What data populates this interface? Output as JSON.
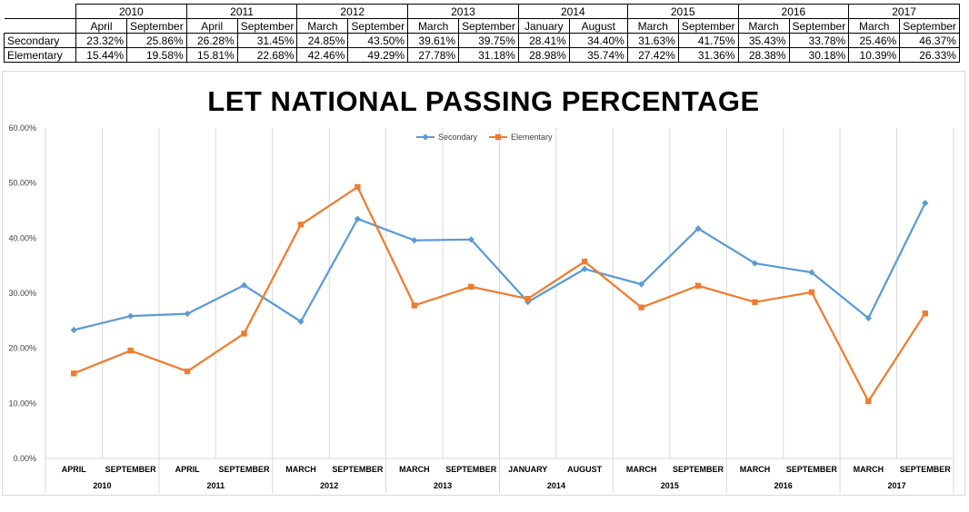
{
  "table": {
    "years": [
      "2010",
      "2011",
      "2012",
      "2013",
      "2014",
      "2015",
      "2016",
      "2017"
    ],
    "periods": [
      "April",
      "September",
      "April",
      "September",
      "March",
      "September",
      "March",
      "September",
      "January",
      "August",
      "March",
      "September",
      "March",
      "September",
      "March",
      "September"
    ],
    "rows": [
      {
        "label": "Secondary",
        "values": [
          "23.32%",
          "25.86%",
          "26.28%",
          "31.45%",
          "24.85%",
          "43.50%",
          "39.61%",
          "39.75%",
          "28.41%",
          "34.40%",
          "31.63%",
          "41.75%",
          "35.43%",
          "33.78%",
          "25.46%",
          "46.37%"
        ]
      },
      {
        "label": "Elementary",
        "values": [
          "15.44%",
          "19.58%",
          "15.81%",
          "22.68%",
          "42.46%",
          "49.29%",
          "27.78%",
          "31.18%",
          "28.98%",
          "35.74%",
          "27.42%",
          "31.36%",
          "28.38%",
          "30.18%",
          "10.39%",
          "26.33%"
        ]
      }
    ]
  },
  "chart_data": {
    "type": "line",
    "title": "LET NATIONAL PASSING PERCENTAGE",
    "categories": [
      "APRIL",
      "SEPTEMBER",
      "APRIL",
      "SEPTEMBER",
      "MARCH",
      "SEPTEMBER",
      "MARCH",
      "SEPTEMBER",
      "JANUARY",
      "AUGUST",
      "MARCH",
      "SEPTEMBER",
      "MARCH",
      "SEPTEMBER",
      "MARCH",
      "SEPTEMBER"
    ],
    "groups": [
      "2010",
      "2011",
      "2012",
      "2013",
      "2014",
      "2015",
      "2016",
      "2017"
    ],
    "series": [
      {
        "name": "Secondary",
        "color": "#5b9bd5",
        "marker": "diamond",
        "values": [
          23.32,
          25.86,
          26.28,
          31.45,
          24.85,
          43.5,
          39.61,
          39.75,
          28.41,
          34.4,
          31.63,
          41.75,
          35.43,
          33.78,
          25.46,
          46.37
        ]
      },
      {
        "name": "Elementary",
        "color": "#ed7d31",
        "marker": "square",
        "values": [
          15.44,
          19.58,
          15.81,
          22.68,
          42.46,
          49.29,
          27.78,
          31.18,
          28.98,
          35.74,
          27.42,
          31.36,
          28.38,
          30.18,
          10.39,
          26.33
        ]
      }
    ],
    "ylim": [
      0,
      60
    ],
    "ytick_labels": [
      "0.00%",
      "10.00%",
      "20.00%",
      "30.00%",
      "40.00%",
      "50.00%",
      "60.00%"
    ],
    "grid": "vertical",
    "legend": "top-center"
  }
}
